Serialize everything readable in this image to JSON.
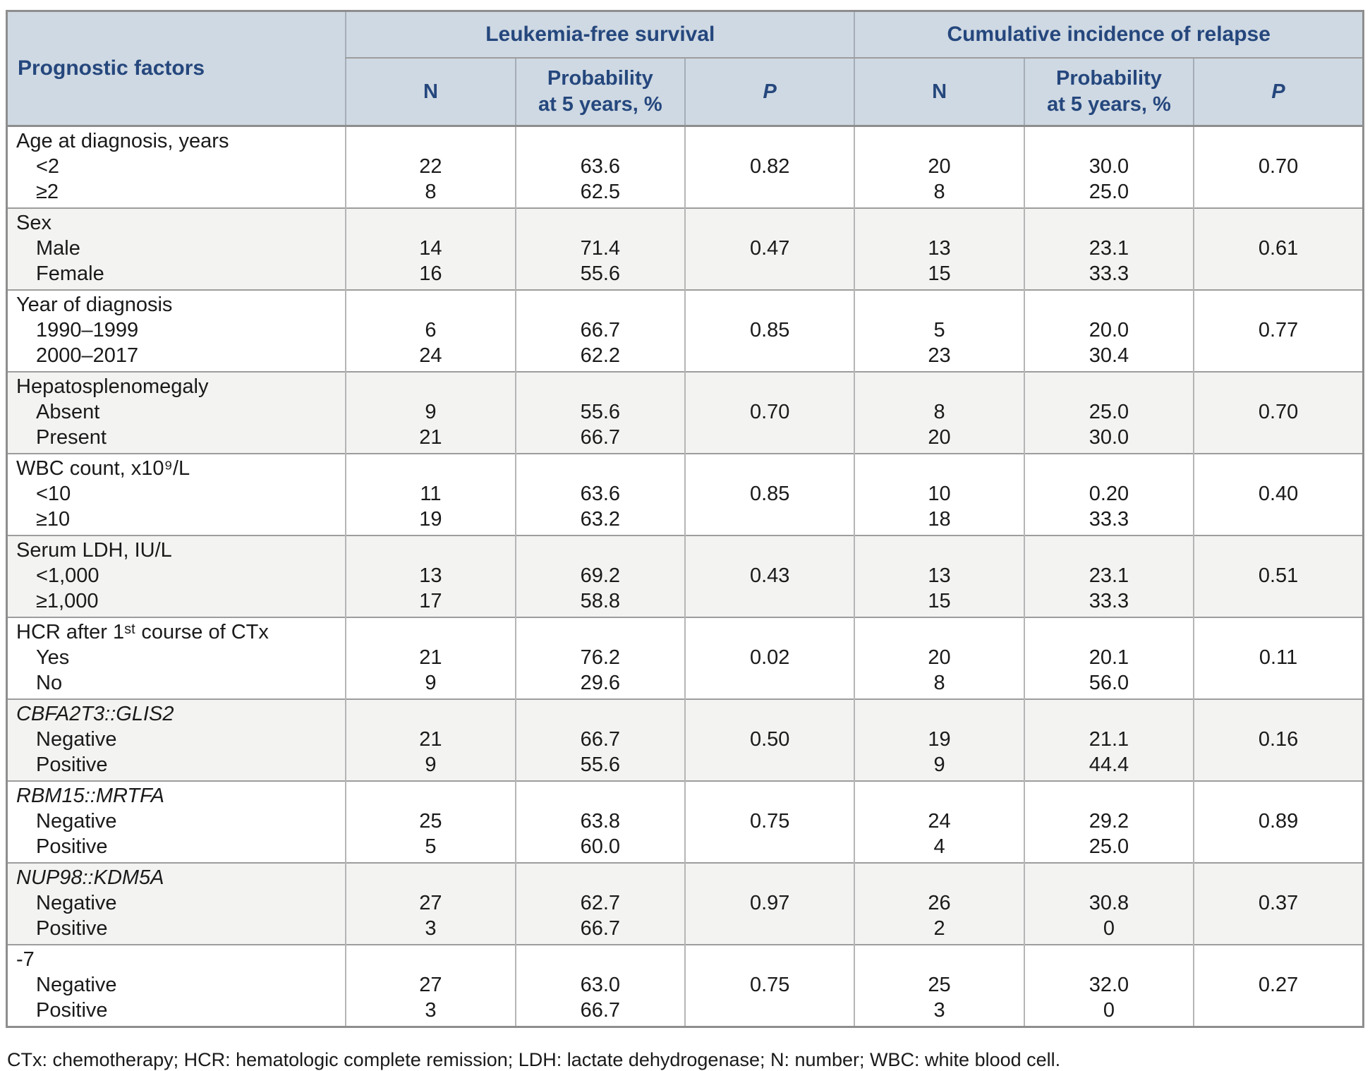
{
  "colors": {
    "header_bg": "#cfd9e3",
    "header_text": "#25477d",
    "alt_row_bg": "#f3f3f2",
    "body_text": "#1a1a1a"
  },
  "header": {
    "factor": "Prognostic factors",
    "groups": [
      "Leukemia-free survival",
      "Cumulative incidence of relapse"
    ],
    "sub": {
      "n": "N",
      "probability": "Probability\nat 5 years, %",
      "p": "P"
    }
  },
  "rows": [
    {
      "factor": "Age at diagnosis, years",
      "italic": false,
      "levels": [
        "<2",
        "≥2"
      ],
      "lfs": {
        "n": [
          "22",
          "8"
        ],
        "prob": [
          "63.6",
          "62.5"
        ],
        "p": "0.82"
      },
      "cir": {
        "n": [
          "20",
          "8"
        ],
        "prob": [
          "30.0",
          "25.0"
        ],
        "p": "0.70"
      }
    },
    {
      "factor": "Sex",
      "italic": false,
      "levels": [
        "Male",
        "Female"
      ],
      "lfs": {
        "n": [
          "14",
          "16"
        ],
        "prob": [
          "71.4",
          "55.6"
        ],
        "p": "0.47"
      },
      "cir": {
        "n": [
          "13",
          "15"
        ],
        "prob": [
          "23.1",
          "33.3"
        ],
        "p": "0.61"
      }
    },
    {
      "factor": "Year of diagnosis",
      "italic": false,
      "levels": [
        "1990–1999",
        "2000–2017"
      ],
      "lfs": {
        "n": [
          "6",
          "24"
        ],
        "prob": [
          "66.7",
          "62.2"
        ],
        "p": "0.85"
      },
      "cir": {
        "n": [
          "5",
          "23"
        ],
        "prob": [
          "20.0",
          "30.4"
        ],
        "p": "0.77"
      }
    },
    {
      "factor": "Hepatosplenomegaly",
      "italic": false,
      "levels": [
        "Absent",
        "Present"
      ],
      "lfs": {
        "n": [
          "9",
          "21"
        ],
        "prob": [
          "55.6",
          "66.7"
        ],
        "p": "0.70"
      },
      "cir": {
        "n": [
          "8",
          "20"
        ],
        "prob": [
          "25.0",
          "30.0"
        ],
        "p": "0.70"
      }
    },
    {
      "factor": "WBC count, x10⁹/L",
      "italic": false,
      "levels": [
        "<10",
        "≥10"
      ],
      "lfs": {
        "n": [
          "11",
          "19"
        ],
        "prob": [
          "63.6",
          "63.2"
        ],
        "p": "0.85"
      },
      "cir": {
        "n": [
          "10",
          "18"
        ],
        "prob": [
          "0.20",
          "33.3"
        ],
        "p": "0.40"
      }
    },
    {
      "factor": "Serum LDH, IU/L",
      "italic": false,
      "levels": [
        "<1,000",
        "≥1,000"
      ],
      "lfs": {
        "n": [
          "13",
          "17"
        ],
        "prob": [
          "69.2",
          "58.8"
        ],
        "p": "0.43"
      },
      "cir": {
        "n": [
          "13",
          "15"
        ],
        "prob": [
          "23.1",
          "33.3"
        ],
        "p": "0.51"
      }
    },
    {
      "factor": "HCR after 1ˢᵗ course of CTx",
      "italic": false,
      "levels": [
        "Yes",
        "No"
      ],
      "lfs": {
        "n": [
          "21",
          "9"
        ],
        "prob": [
          "76.2",
          "29.6"
        ],
        "p": "0.02"
      },
      "cir": {
        "n": [
          "20",
          "8"
        ],
        "prob": [
          "20.1",
          "56.0"
        ],
        "p": "0.11"
      }
    },
    {
      "factor": "CBFA2T3::GLIS2",
      "italic": true,
      "levels": [
        "Negative",
        "Positive"
      ],
      "lfs": {
        "n": [
          "21",
          "9"
        ],
        "prob": [
          "66.7",
          "55.6"
        ],
        "p": "0.50"
      },
      "cir": {
        "n": [
          "19",
          "9"
        ],
        "prob": [
          "21.1",
          "44.4"
        ],
        "p": "0.16"
      }
    },
    {
      "factor": "RBM15::MRTFA",
      "italic": true,
      "levels": [
        "Negative",
        "Positive"
      ],
      "lfs": {
        "n": [
          "25",
          "5"
        ],
        "prob": [
          "63.8",
          "60.0"
        ],
        "p": "0.75"
      },
      "cir": {
        "n": [
          "24",
          "4"
        ],
        "prob": [
          "29.2",
          "25.0"
        ],
        "p": "0.89"
      }
    },
    {
      "factor": "NUP98::KDM5A",
      "italic": true,
      "levels": [
        "Negative",
        "Positive"
      ],
      "lfs": {
        "n": [
          "27",
          "3"
        ],
        "prob": [
          "62.7",
          "66.7"
        ],
        "p": "0.97"
      },
      "cir": {
        "n": [
          "26",
          "2"
        ],
        "prob": [
          "30.8",
          "0"
        ],
        "p": "0.37"
      }
    },
    {
      "factor": "-7",
      "italic": false,
      "levels": [
        "Negative",
        "Positive"
      ],
      "lfs": {
        "n": [
          "27",
          "3"
        ],
        "prob": [
          "63.0",
          "66.7"
        ],
        "p": "0.75"
      },
      "cir": {
        "n": [
          "25",
          "3"
        ],
        "prob": [
          "32.0",
          "0"
        ],
        "p": "0.27"
      }
    }
  ],
  "footnote": "CTx: chemotherapy; HCR: hematologic complete remission; LDH: lactate dehydrogenase; N: number; WBC: white blood cell."
}
